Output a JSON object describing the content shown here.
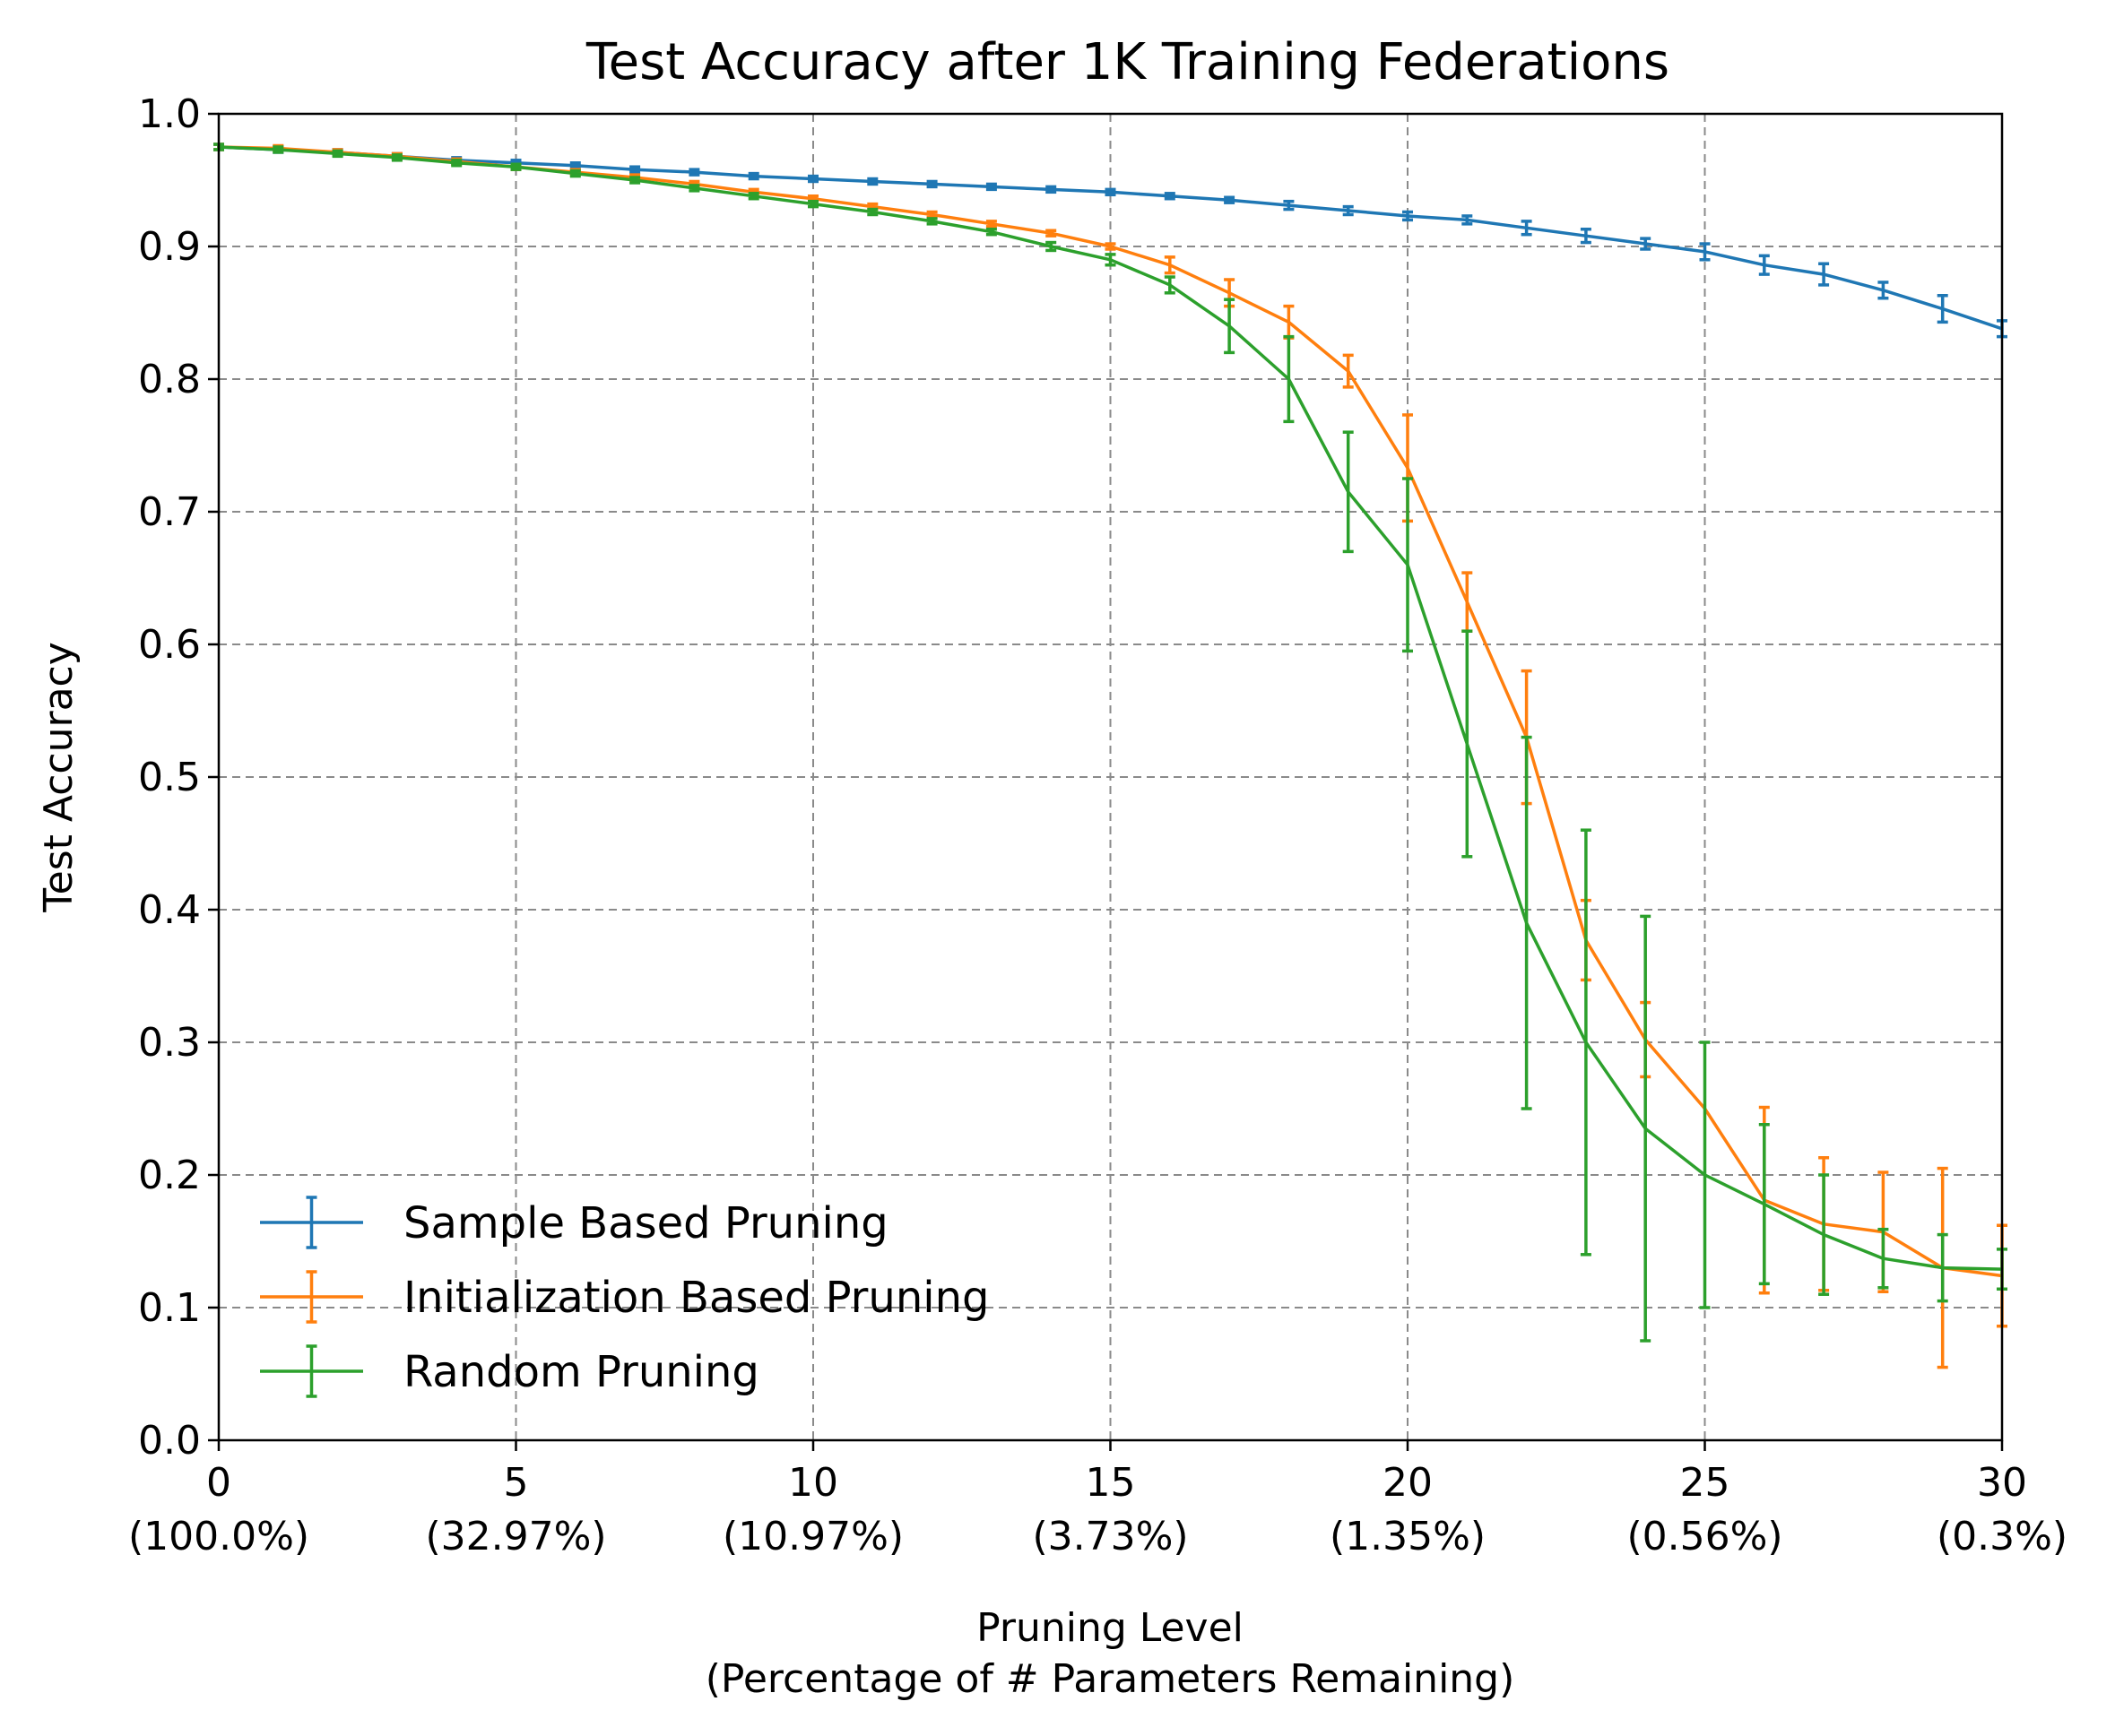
{
  "chart_data": {
    "type": "line",
    "title": "Test Accuracy after 1K Training Federations",
    "xlabel": "Pruning Level",
    "xlabel2": "(Percentage of # Parameters Remaining)",
    "ylabel": "Test Accuracy",
    "xlim": [
      0,
      30
    ],
    "ylim": [
      0,
      1
    ],
    "grid": true,
    "legend_position": "lower-left",
    "x_ticks": [
      {
        "value": 0,
        "label": "0",
        "sublabel": "(100.0%)"
      },
      {
        "value": 5,
        "label": "5",
        "sublabel": "(32.97%)"
      },
      {
        "value": 10,
        "label": "10",
        "sublabel": "(10.97%)"
      },
      {
        "value": 15,
        "label": "15",
        "sublabel": "(3.73%)"
      },
      {
        "value": 20,
        "label": "20",
        "sublabel": "(1.35%)"
      },
      {
        "value": 25,
        "label": "25",
        "sublabel": "(0.56%)"
      },
      {
        "value": 30,
        "label": "30",
        "sublabel": "(0.3%)"
      }
    ],
    "y_ticks": [
      "0.0",
      "0.1",
      "0.2",
      "0.3",
      "0.4",
      "0.5",
      "0.6",
      "0.7",
      "0.8",
      "0.9",
      "1.0"
    ],
    "x": [
      0,
      1,
      2,
      3,
      4,
      5,
      6,
      7,
      8,
      9,
      10,
      11,
      12,
      13,
      14,
      15,
      16,
      17,
      18,
      19,
      20,
      21,
      22,
      23,
      24,
      25,
      26,
      27,
      28,
      29,
      30
    ],
    "series": [
      {
        "name": "Sample Based Pruning",
        "color": "#1f77b4",
        "values": [
          0.975,
          0.973,
          0.971,
          0.968,
          0.965,
          0.963,
          0.961,
          0.958,
          0.956,
          0.953,
          0.951,
          0.949,
          0.947,
          0.945,
          0.943,
          0.941,
          0.938,
          0.935,
          0.931,
          0.927,
          0.923,
          0.92,
          0.914,
          0.908,
          0.902,
          0.896,
          0.886,
          0.879,
          0.867,
          0.853,
          0.838
        ],
        "errors": [
          0.002,
          0.002,
          0.002,
          0.002,
          0.002,
          0.002,
          0.002,
          0.002,
          0.002,
          0.002,
          0.002,
          0.002,
          0.002,
          0.002,
          0.002,
          0.002,
          0.002,
          0.002,
          0.003,
          0.003,
          0.003,
          0.003,
          0.005,
          0.005,
          0.004,
          0.006,
          0.007,
          0.008,
          0.006,
          0.01,
          0.006
        ]
      },
      {
        "name": "Initialization Based Pruning",
        "color": "#ff7f0e",
        "values": [
          0.975,
          0.974,
          0.971,
          0.968,
          0.964,
          0.96,
          0.956,
          0.952,
          0.947,
          0.941,
          0.936,
          0.93,
          0.924,
          0.917,
          0.91,
          0.9,
          0.886,
          0.865,
          0.843,
          0.806,
          0.733,
          0.632,
          0.53,
          0.377,
          0.302,
          0.25,
          0.181,
          0.163,
          0.157,
          0.13,
          0.124
        ],
        "errors": [
          0.002,
          0.002,
          0.002,
          0.002,
          0.002,
          0.002,
          0.002,
          0.002,
          0.002,
          0.002,
          0.002,
          0.002,
          0.002,
          0.002,
          0.002,
          0.002,
          0.006,
          0.01,
          0.012,
          0.012,
          0.04,
          0.022,
          0.05,
          0.03,
          0.028,
          0.0,
          0.07,
          0.05,
          0.045,
          0.075,
          0.038
        ]
      },
      {
        "name": "Random Pruning",
        "color": "#2ca02c",
        "values": [
          0.975,
          0.973,
          0.97,
          0.967,
          0.963,
          0.96,
          0.955,
          0.95,
          0.944,
          0.938,
          0.932,
          0.926,
          0.919,
          0.911,
          0.9,
          0.89,
          0.871,
          0.84,
          0.8,
          0.715,
          0.66,
          0.525,
          0.39,
          0.3,
          0.235,
          0.2,
          0.178,
          0.155,
          0.137,
          0.13,
          0.129
        ],
        "errors": [
          0.002,
          0.002,
          0.002,
          0.002,
          0.002,
          0.002,
          0.002,
          0.002,
          0.002,
          0.002,
          0.002,
          0.002,
          0.002,
          0.002,
          0.003,
          0.004,
          0.006,
          0.02,
          0.032,
          0.045,
          0.065,
          0.085,
          0.14,
          0.16,
          0.16,
          0.1,
          0.06,
          0.045,
          0.022,
          0.025,
          0.015
        ]
      }
    ]
  }
}
